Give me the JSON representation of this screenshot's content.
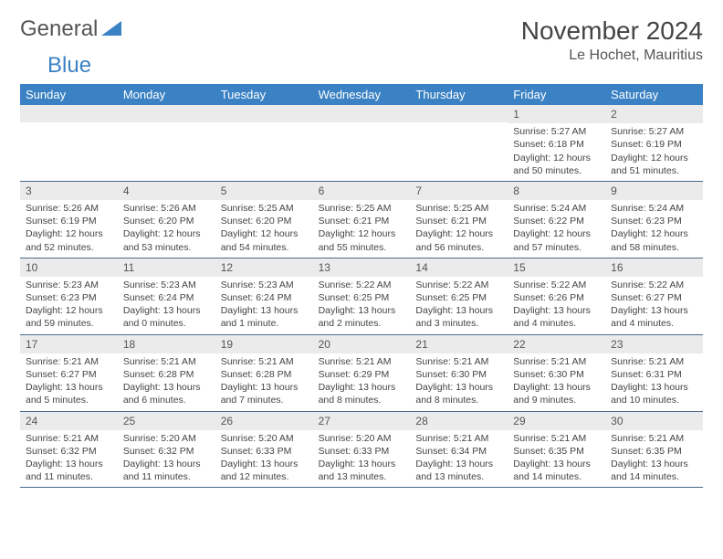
{
  "brand": {
    "part1": "General",
    "part2": "Blue"
  },
  "title": "November 2024",
  "location": "Le Hochet, Mauritius",
  "colors": {
    "header_bg": "#3b82c4",
    "header_text": "#ffffff",
    "daynum_bg": "#ebebeb",
    "border": "#4a6a8a",
    "text": "#444444"
  },
  "day_names": [
    "Sunday",
    "Monday",
    "Tuesday",
    "Wednesday",
    "Thursday",
    "Friday",
    "Saturday"
  ],
  "weeks": [
    [
      {
        "n": "",
        "sr": "",
        "ss": "",
        "dl": ""
      },
      {
        "n": "",
        "sr": "",
        "ss": "",
        "dl": ""
      },
      {
        "n": "",
        "sr": "",
        "ss": "",
        "dl": ""
      },
      {
        "n": "",
        "sr": "",
        "ss": "",
        "dl": ""
      },
      {
        "n": "",
        "sr": "",
        "ss": "",
        "dl": ""
      },
      {
        "n": "1",
        "sr": "Sunrise: 5:27 AM",
        "ss": "Sunset: 6:18 PM",
        "dl": "Daylight: 12 hours and 50 minutes."
      },
      {
        "n": "2",
        "sr": "Sunrise: 5:27 AM",
        "ss": "Sunset: 6:19 PM",
        "dl": "Daylight: 12 hours and 51 minutes."
      }
    ],
    [
      {
        "n": "3",
        "sr": "Sunrise: 5:26 AM",
        "ss": "Sunset: 6:19 PM",
        "dl": "Daylight: 12 hours and 52 minutes."
      },
      {
        "n": "4",
        "sr": "Sunrise: 5:26 AM",
        "ss": "Sunset: 6:20 PM",
        "dl": "Daylight: 12 hours and 53 minutes."
      },
      {
        "n": "5",
        "sr": "Sunrise: 5:25 AM",
        "ss": "Sunset: 6:20 PM",
        "dl": "Daylight: 12 hours and 54 minutes."
      },
      {
        "n": "6",
        "sr": "Sunrise: 5:25 AM",
        "ss": "Sunset: 6:21 PM",
        "dl": "Daylight: 12 hours and 55 minutes."
      },
      {
        "n": "7",
        "sr": "Sunrise: 5:25 AM",
        "ss": "Sunset: 6:21 PM",
        "dl": "Daylight: 12 hours and 56 minutes."
      },
      {
        "n": "8",
        "sr": "Sunrise: 5:24 AM",
        "ss": "Sunset: 6:22 PM",
        "dl": "Daylight: 12 hours and 57 minutes."
      },
      {
        "n": "9",
        "sr": "Sunrise: 5:24 AM",
        "ss": "Sunset: 6:23 PM",
        "dl": "Daylight: 12 hours and 58 minutes."
      }
    ],
    [
      {
        "n": "10",
        "sr": "Sunrise: 5:23 AM",
        "ss": "Sunset: 6:23 PM",
        "dl": "Daylight: 12 hours and 59 minutes."
      },
      {
        "n": "11",
        "sr": "Sunrise: 5:23 AM",
        "ss": "Sunset: 6:24 PM",
        "dl": "Daylight: 13 hours and 0 minutes."
      },
      {
        "n": "12",
        "sr": "Sunrise: 5:23 AM",
        "ss": "Sunset: 6:24 PM",
        "dl": "Daylight: 13 hours and 1 minute."
      },
      {
        "n": "13",
        "sr": "Sunrise: 5:22 AM",
        "ss": "Sunset: 6:25 PM",
        "dl": "Daylight: 13 hours and 2 minutes."
      },
      {
        "n": "14",
        "sr": "Sunrise: 5:22 AM",
        "ss": "Sunset: 6:25 PM",
        "dl": "Daylight: 13 hours and 3 minutes."
      },
      {
        "n": "15",
        "sr": "Sunrise: 5:22 AM",
        "ss": "Sunset: 6:26 PM",
        "dl": "Daylight: 13 hours and 4 minutes."
      },
      {
        "n": "16",
        "sr": "Sunrise: 5:22 AM",
        "ss": "Sunset: 6:27 PM",
        "dl": "Daylight: 13 hours and 4 minutes."
      }
    ],
    [
      {
        "n": "17",
        "sr": "Sunrise: 5:21 AM",
        "ss": "Sunset: 6:27 PM",
        "dl": "Daylight: 13 hours and 5 minutes."
      },
      {
        "n": "18",
        "sr": "Sunrise: 5:21 AM",
        "ss": "Sunset: 6:28 PM",
        "dl": "Daylight: 13 hours and 6 minutes."
      },
      {
        "n": "19",
        "sr": "Sunrise: 5:21 AM",
        "ss": "Sunset: 6:28 PM",
        "dl": "Daylight: 13 hours and 7 minutes."
      },
      {
        "n": "20",
        "sr": "Sunrise: 5:21 AM",
        "ss": "Sunset: 6:29 PM",
        "dl": "Daylight: 13 hours and 8 minutes."
      },
      {
        "n": "21",
        "sr": "Sunrise: 5:21 AM",
        "ss": "Sunset: 6:30 PM",
        "dl": "Daylight: 13 hours and 8 minutes."
      },
      {
        "n": "22",
        "sr": "Sunrise: 5:21 AM",
        "ss": "Sunset: 6:30 PM",
        "dl": "Daylight: 13 hours and 9 minutes."
      },
      {
        "n": "23",
        "sr": "Sunrise: 5:21 AM",
        "ss": "Sunset: 6:31 PM",
        "dl": "Daylight: 13 hours and 10 minutes."
      }
    ],
    [
      {
        "n": "24",
        "sr": "Sunrise: 5:21 AM",
        "ss": "Sunset: 6:32 PM",
        "dl": "Daylight: 13 hours and 11 minutes."
      },
      {
        "n": "25",
        "sr": "Sunrise: 5:20 AM",
        "ss": "Sunset: 6:32 PM",
        "dl": "Daylight: 13 hours and 11 minutes."
      },
      {
        "n": "26",
        "sr": "Sunrise: 5:20 AM",
        "ss": "Sunset: 6:33 PM",
        "dl": "Daylight: 13 hours and 12 minutes."
      },
      {
        "n": "27",
        "sr": "Sunrise: 5:20 AM",
        "ss": "Sunset: 6:33 PM",
        "dl": "Daylight: 13 hours and 13 minutes."
      },
      {
        "n": "28",
        "sr": "Sunrise: 5:21 AM",
        "ss": "Sunset: 6:34 PM",
        "dl": "Daylight: 13 hours and 13 minutes."
      },
      {
        "n": "29",
        "sr": "Sunrise: 5:21 AM",
        "ss": "Sunset: 6:35 PM",
        "dl": "Daylight: 13 hours and 14 minutes."
      },
      {
        "n": "30",
        "sr": "Sunrise: 5:21 AM",
        "ss": "Sunset: 6:35 PM",
        "dl": "Daylight: 13 hours and 14 minutes."
      }
    ]
  ]
}
